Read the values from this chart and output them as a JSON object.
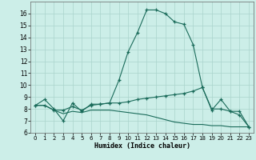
{
  "xlabel": "Humidex (Indice chaleur)",
  "bg_color": "#cceee8",
  "grid_color": "#aad4cc",
  "line_color": "#1a6b5a",
  "xlim": [
    -0.5,
    23.5
  ],
  "ylim": [
    6,
    17
  ],
  "yticks": [
    6,
    7,
    8,
    9,
    10,
    11,
    12,
    13,
    14,
    15,
    16
  ],
  "xticks": [
    0,
    1,
    2,
    3,
    4,
    5,
    6,
    7,
    8,
    9,
    10,
    11,
    12,
    13,
    14,
    15,
    16,
    17,
    18,
    19,
    20,
    21,
    22,
    23
  ],
  "curve1_x": [
    0,
    1,
    2,
    3,
    4,
    5,
    6,
    7,
    8,
    9,
    10,
    11,
    12,
    13,
    14,
    15,
    16,
    17,
    18,
    19,
    20,
    21,
    22,
    23
  ],
  "curve1_y": [
    8.3,
    8.8,
    8.0,
    7.0,
    8.5,
    7.8,
    8.4,
    8.4,
    8.5,
    10.4,
    12.8,
    14.4,
    16.3,
    16.3,
    16.0,
    15.3,
    15.1,
    13.4,
    9.8,
    7.9,
    8.8,
    7.8,
    7.5,
    6.5
  ],
  "curve2_x": [
    0,
    1,
    2,
    3,
    4,
    5,
    6,
    7,
    8,
    9,
    10,
    11,
    12,
    13,
    14,
    15,
    16,
    17,
    18,
    19,
    20,
    21,
    22,
    23
  ],
  "curve2_y": [
    8.3,
    8.3,
    7.9,
    7.9,
    8.2,
    7.9,
    8.3,
    8.4,
    8.5,
    8.5,
    8.6,
    8.8,
    8.9,
    9.0,
    9.1,
    9.2,
    9.3,
    9.5,
    9.8,
    8.0,
    8.0,
    7.8,
    7.8,
    6.5
  ],
  "curve3_x": [
    0,
    1,
    2,
    3,
    4,
    5,
    6,
    7,
    8,
    9,
    10,
    11,
    12,
    13,
    14,
    15,
    16,
    17,
    18,
    19,
    20,
    21,
    22,
    23
  ],
  "curve3_y": [
    8.3,
    8.3,
    7.9,
    7.6,
    7.8,
    7.7,
    7.9,
    7.9,
    7.9,
    7.8,
    7.7,
    7.6,
    7.5,
    7.3,
    7.1,
    6.9,
    6.8,
    6.7,
    6.7,
    6.6,
    6.6,
    6.5,
    6.5,
    6.5
  ]
}
